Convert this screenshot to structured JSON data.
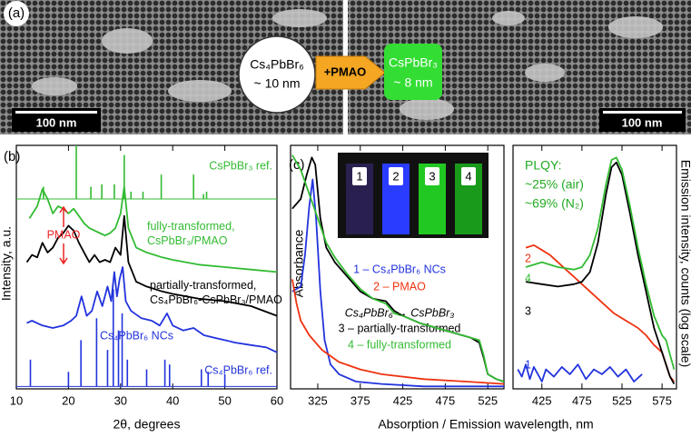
{
  "panel_a": {
    "label": "(a)",
    "before": [
      "Cs₄PbBr₆",
      "~ 10 nm"
    ],
    "reagent": "+PMAO",
    "after": [
      "CsPbBr₃",
      "~ 8 nm"
    ],
    "scale_bars": [
      "100 nm",
      "100 nm"
    ]
  },
  "chart_data": [
    {
      "type": "line",
      "panel": "(b)",
      "xlabel": "2θ, degrees",
      "ylabel": "Intensity, a.u.",
      "xlim": [
        10,
        60
      ],
      "xticks": [
        10,
        20,
        30,
        40,
        50,
        60
      ],
      "ylim": [
        0,
        100
      ],
      "annotation": "PMAO",
      "series": [
        {
          "name": "CsPbBr₃ ref.",
          "color": "#33bb33",
          "style": "stick",
          "baseline": 78,
          "x": [
            15.2,
            21.5,
            24.3,
            26.4,
            28.8,
            30.7,
            32,
            34.3,
            37.8,
            44,
            45.9,
            46.5
          ],
          "values": [
            83,
            100,
            83,
            84,
            84,
            96,
            81,
            81,
            88,
            88,
            80,
            81
          ]
        },
        {
          "name": "fully-transformed, CsPbBr₃/PMAO",
          "color": "#33bb33",
          "x": [
            12.5,
            14,
            15,
            16,
            17,
            18,
            19,
            20,
            21,
            22,
            23,
            24,
            25,
            26,
            27,
            28,
            29,
            30,
            30.7,
            31.5,
            33,
            35,
            38,
            40,
            45,
            50,
            55,
            60
          ],
          "values": [
            70,
            75,
            82,
            78,
            72,
            75,
            74,
            72,
            74,
            71,
            68,
            66,
            65,
            64,
            63,
            64,
            66,
            72,
            83,
            66,
            58,
            56,
            54,
            53,
            51,
            50,
            49,
            48
          ]
        },
        {
          "name": "partially-transformed, Cs₄PbBr₆-CsPbBr₃/PMAO",
          "color": "#000000",
          "x": [
            12,
            13,
            14,
            15,
            16,
            17,
            18,
            19,
            20,
            21,
            22,
            23,
            24,
            25,
            26,
            27,
            28,
            29,
            30,
            30.7,
            31.5,
            33,
            35,
            38,
            40,
            45,
            50,
            55,
            60
          ],
          "values": [
            52,
            55,
            54,
            60,
            56,
            58,
            62,
            64,
            67,
            65,
            60,
            56,
            52,
            55,
            52,
            53,
            52,
            58,
            55,
            71,
            52,
            44,
            42,
            40,
            39,
            37,
            36,
            34,
            30
          ]
        },
        {
          "name": "Cs₄PbBr₆ NCs",
          "color": "#2233dd",
          "x": [
            12,
            13,
            15,
            17,
            19,
            20.5,
            21.5,
            22.5,
            23.5,
            24.5,
            25.5,
            26.5,
            27.5,
            28.2,
            28.8,
            29.3,
            29.8,
            30.4,
            31,
            32,
            34,
            36,
            37.5,
            38.9,
            40,
            42,
            44,
            46,
            48,
            50,
            52,
            55,
            58,
            60
          ],
          "values": [
            27,
            28,
            26,
            25,
            26,
            28,
            30,
            38,
            30,
            32,
            40,
            34,
            42,
            36,
            48,
            38,
            45,
            50,
            36,
            32,
            29,
            28,
            26,
            31,
            26,
            24,
            25,
            22,
            21,
            20,
            19,
            18,
            17,
            15
          ]
        },
        {
          "name": "Cs₄PbBr₆ ref.",
          "color": "#2233dd",
          "style": "stick",
          "baseline": 1,
          "x": [
            12.7,
            20,
            22.4,
            25.4,
            27.5,
            28.6,
            29.6,
            30.3,
            31.3,
            35,
            38.5,
            39.4,
            45.5,
            46.8,
            50
          ],
          "values": [
            12,
            7,
            20,
            29,
            16,
            41,
            24,
            31,
            12,
            8,
            12,
            10,
            8,
            7,
            6
          ]
        }
      ]
    },
    {
      "type": "line",
      "panel": "(c)",
      "xlabel": "Absorption / Emission wavelength, nm",
      "ylabel": "Absorbance",
      "xlim": [
        293,
        544
      ],
      "xticks": [
        325,
        375,
        425,
        475,
        525
      ],
      "ylim": [
        0,
        100
      ],
      "annotation": "Cs₄PbBr₆ → CsPbBr₃",
      "series": [
        {
          "name": "1 – Cs₄PbBr₆ NCs",
          "color": "#2233dd",
          "x": [
            295,
            305,
            310,
            315,
            319,
            323,
            328,
            333,
            340,
            350,
            370,
            400,
            450,
            544
          ],
          "values": [
            40,
            42,
            55,
            75,
            86,
            70,
            40,
            20,
            10,
            6,
            3,
            2,
            1,
            1
          ]
        },
        {
          "name": "2 – PMAO",
          "color": "#ee3311",
          "x": [
            295,
            300,
            305,
            315,
            330,
            350,
            375,
            400,
            450,
            500,
            544
          ],
          "values": [
            45,
            35,
            28,
            22,
            16,
            11,
            8,
            6,
            4,
            3,
            2
          ]
        },
        {
          "name": "3 – partially-transformed",
          "color": "#000000",
          "x": [
            295,
            305,
            312,
            318,
            322,
            328,
            335,
            345,
            360,
            375,
            390,
            405,
            415,
            425,
            445,
            465,
            485,
            505,
            515,
            520,
            525,
            535,
            544
          ],
          "values": [
            74,
            78,
            88,
            95,
            92,
            70,
            58,
            52,
            46,
            40,
            37,
            36,
            32,
            30,
            27,
            25,
            23,
            21,
            19,
            13,
            6,
            4,
            3
          ]
        },
        {
          "name": "4 – fully-transformed",
          "color": "#33bb33",
          "x": [
            295,
            305,
            315,
            325,
            335,
            345,
            360,
            375,
            390,
            405,
            415,
            425,
            445,
            465,
            485,
            505,
            515,
            520,
            525,
            535,
            544
          ],
          "values": [
            96,
            90,
            80,
            70,
            60,
            54,
            47,
            41,
            37,
            35,
            31,
            30,
            27,
            25,
            23,
            21,
            20,
            14,
            6,
            4,
            3
          ]
        }
      ]
    },
    {
      "type": "line",
      "ylabel": "Emission intensity, counts (log scale)",
      "xlim": [
        389,
        593
      ],
      "xticks": [
        425,
        475,
        525,
        575
      ],
      "ylim": [
        0,
        100
      ],
      "annotations": [
        "PLQY:",
        "~25% (air)",
        "~69% (N₂)"
      ],
      "series": [
        {
          "name": "1",
          "color": "#2233dd",
          "x": [
            395,
            400,
            405,
            410,
            415,
            420,
            425,
            430,
            440,
            450,
            460,
            470,
            480,
            490,
            500,
            510,
            520,
            530,
            540,
            550
          ],
          "values": [
            8,
            5,
            10,
            4,
            9,
            6,
            3,
            8,
            5,
            9,
            6,
            10,
            4,
            8,
            6,
            9,
            5,
            8,
            3,
            6
          ]
        },
        {
          "name": "2",
          "color": "#ee3311",
          "x": [
            405,
            415,
            425,
            435,
            445,
            455,
            465,
            475,
            485,
            495,
            505,
            515,
            525,
            535,
            545,
            555,
            565,
            575,
            580,
            585,
            590
          ],
          "values": [
            58,
            59,
            57,
            55,
            52,
            49,
            46,
            43,
            40,
            37,
            34,
            31,
            29,
            27,
            25,
            22,
            18,
            15,
            10,
            5,
            3
          ]
        },
        {
          "name": "3",
          "color": "#000000",
          "x": [
            405,
            425,
            445,
            465,
            475,
            485,
            495,
            505,
            512,
            518,
            525,
            535,
            545,
            555,
            565,
            575,
            580,
            585,
            590
          ],
          "values": [
            44,
            43,
            42,
            43,
            44,
            48,
            60,
            80,
            91,
            93,
            88,
            72,
            55,
            40,
            25,
            15,
            10,
            5,
            2
          ]
        },
        {
          "name": "4",
          "color": "#33bb33",
          "x": [
            405,
            425,
            445,
            465,
            475,
            485,
            495,
            505,
            512,
            518,
            525,
            535,
            545,
            555,
            565,
            575,
            580,
            585,
            590
          ],
          "values": [
            50,
            52,
            50,
            49,
            50,
            55,
            66,
            84,
            94,
            95,
            90,
            75,
            58,
            43,
            30,
            22,
            20,
            14,
            8
          ]
        }
      ]
    }
  ]
}
